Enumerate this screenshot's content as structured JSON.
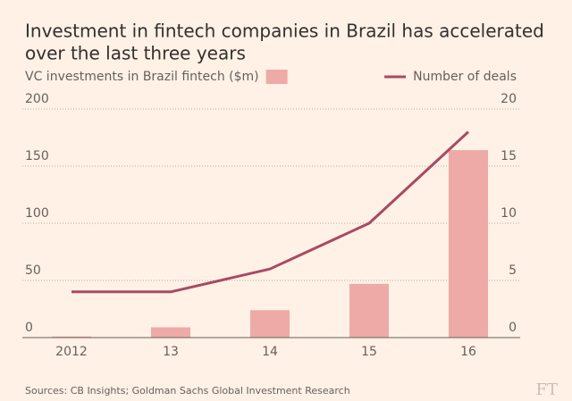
{
  "chart_data": {
    "type": "combo",
    "title": [
      "Investment in fintech companies in Brazil has accelerated",
      "over the last three years"
    ],
    "categories": [
      "2012",
      "13",
      "14",
      "15",
      "16"
    ],
    "series": [
      {
        "name": "VC investments in Brazil fintech ($m)",
        "type": "bar",
        "color": "#eeaaa7",
        "values": [
          1,
          9,
          24,
          47,
          164
        ]
      },
      {
        "name": "Number of deals",
        "type": "line",
        "axis": "y2",
        "color": "#a84a63",
        "values": [
          4,
          4,
          6,
          10,
          18
        ]
      }
    ],
    "ylim": [
      0,
      200
    ],
    "yticks": [
      0,
      50,
      100,
      150,
      200
    ],
    "y2lim": [
      0,
      20
    ],
    "y2ticks": [
      0,
      5,
      10,
      15,
      20
    ],
    "grid": true,
    "source": "Sources: CB Insights; Goldman Sachs Global Investment Research",
    "logo": "FT"
  }
}
